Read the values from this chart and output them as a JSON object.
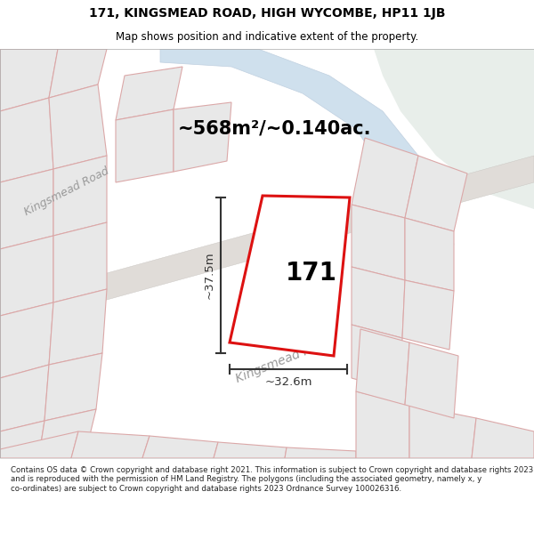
{
  "title_line1": "171, KINGSMEAD ROAD, HIGH WYCOMBE, HP11 1JB",
  "title_line2": "Map shows position and indicative extent of the property.",
  "area_text": "~568m²/~0.140ac.",
  "property_label": "171",
  "dim_width": "~32.6m",
  "dim_height": "~37.5m",
  "footer_text": "Contains OS data © Crown copyright and database right 2021. This information is subject to Crown copyright and database rights 2023 and is reproduced with the permission of HM Land Registry. The polygons (including the associated geometry, namely x, y co-ordinates) are subject to Crown copyright and database rights 2023 Ordnance Survey 100026316.",
  "bg_color": "#f2f2f0",
  "map_bg": "#f2f2f0",
  "river_color": "#cfe0ed",
  "river_outline": "#c0d0e0",
  "green_area": "#e8eeea",
  "road_color": "#e8e4e0",
  "plot_edge_color": "#dd1111",
  "neighbor_fill": "#e8e8e8",
  "neighbor_edge": "#e8b0b0",
  "road_label_color": "#999999",
  "road_label": "Kingsmead Road",
  "dim_color": "#333333",
  "title_fontsize": 10,
  "subtitle_fontsize": 8.5,
  "area_fontsize": 15,
  "label_fontsize": 20,
  "dim_fontsize": 9.5,
  "road_fontsize": 11
}
